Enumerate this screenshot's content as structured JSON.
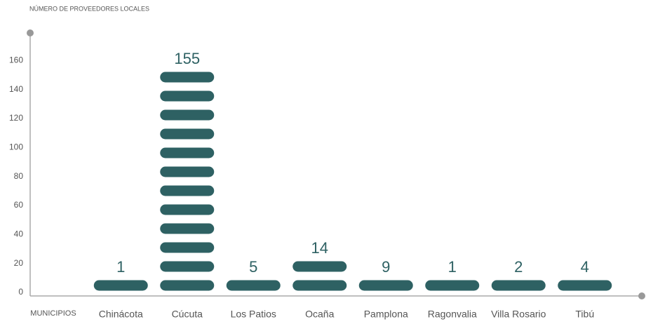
{
  "chart_data": {
    "type": "pictograph-bar",
    "title": "NÚMERO DE PROVEEDORES LOCALES",
    "x_label": "MUNICIPIOS",
    "categories": [
      "Chinácota",
      "Cúcuta",
      "Los Patios",
      "Ocaña",
      "Pamplona",
      "Ragonvalia",
      "Villa Rosario",
      "Tibú"
    ],
    "values": [
      1,
      155,
      5,
      14,
      9,
      1,
      2,
      4
    ],
    "color": "#2e6163",
    "ylim": [
      0,
      165
    ],
    "yticks": [
      0,
      20,
      40,
      60,
      80,
      100,
      120,
      140,
      160
    ]
  }
}
